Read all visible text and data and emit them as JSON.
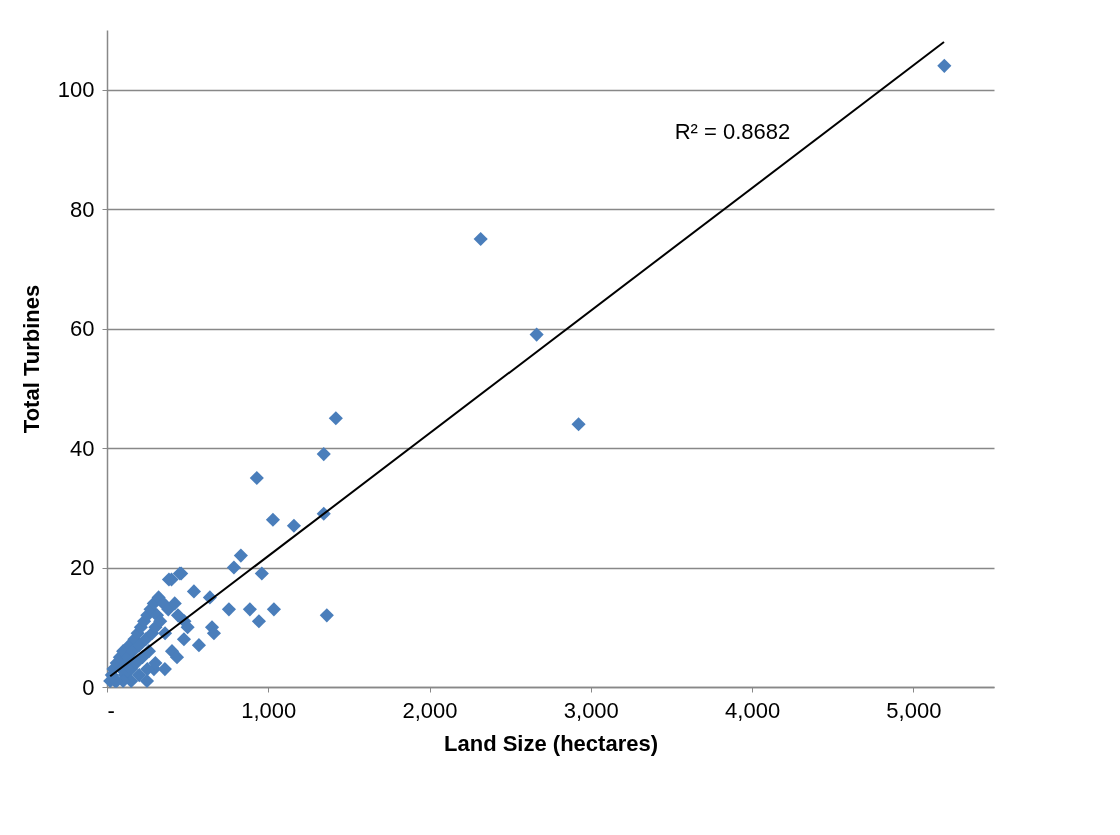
{
  "chart_data": {
    "type": "scatter",
    "xlabel": "Land Size (hectares)",
    "ylabel": "Total Turbines",
    "xlim": [
      0,
      5500
    ],
    "xticks": [
      {
        "value": 0,
        "label": "-"
      },
      {
        "value": 1000,
        "label": "1,000"
      },
      {
        "value": 2000,
        "label": "2,000"
      },
      {
        "value": 3000,
        "label": "3,000"
      },
      {
        "value": 4000,
        "label": "4,000"
      },
      {
        "value": 5000,
        "label": "5,000"
      }
    ],
    "ylim": [
      0,
      110
    ],
    "yticks": [
      0,
      20,
      40,
      60,
      80,
      100
    ],
    "grid": "y",
    "marker": "diamond",
    "series": [
      {
        "color": "#4a7ebb",
        "x": [
          5192,
          2317,
          2664,
          2924,
          1419,
          1344,
          1344,
          1363,
          929,
          1029,
          1159,
          1035,
          886,
          960,
          942,
          830,
          787,
          756,
          638,
          651,
          663,
          570,
          539,
          477,
          452,
          384,
          403,
          434,
          359,
          291,
          248,
          20,
          30,
          40,
          50,
          60,
          80,
          90,
          100,
          110,
          120,
          130,
          140,
          150,
          160,
          170,
          180,
          190,
          200,
          210,
          220,
          230,
          240,
          250,
          260,
          270,
          280,
          290,
          300,
          310,
          320,
          330,
          350,
          360,
          380,
          400,
          420,
          440,
          460,
          480,
          500,
          200,
          250,
          300,
          150,
          100,
          60
        ],
        "values": [
          104,
          75,
          59,
          44,
          45,
          39,
          29,
          12,
          35,
          28,
          27,
          13,
          13,
          19,
          11,
          22,
          20,
          13,
          15,
          10,
          9,
          7,
          16,
          8,
          19,
          18,
          6,
          5,
          3,
          3,
          1,
          1,
          2,
          3,
          1,
          4,
          5,
          3,
          6,
          2,
          4,
          5,
          7,
          3,
          6,
          8,
          4,
          9,
          7,
          10,
          5,
          11,
          8,
          12,
          6,
          13,
          9,
          14,
          10,
          12,
          15,
          11,
          14,
          9,
          13,
          18,
          14,
          12,
          19,
          11,
          10,
          2,
          3,
          4,
          1,
          1,
          1
        ]
      },
      {
        "type": "line",
        "color": "#000000",
        "marker": "none",
        "line_style": "solid",
        "x": [
          20,
          5190
        ],
        "values": [
          1.8,
          108
        ]
      }
    ],
    "annotations": [
      "R² = 0.8682"
    ]
  }
}
